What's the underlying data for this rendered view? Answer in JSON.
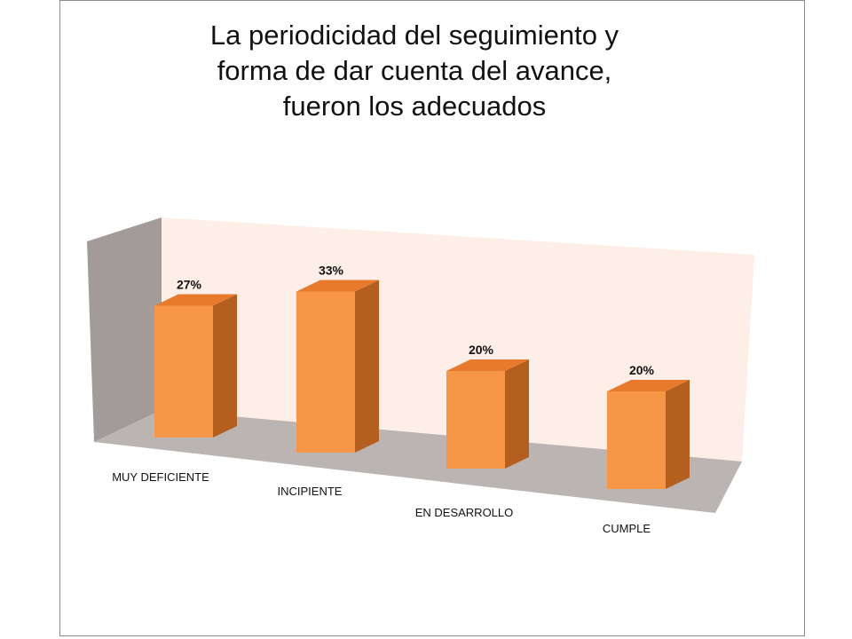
{
  "chart_data": {
    "type": "bar",
    "title_lines": [
      "La periodicidad del seguimiento y",
      "forma de dar cuenta del avance,",
      "fueron los adecuados"
    ],
    "categories": [
      "MUY DEFICIENTE",
      "INCIPIENTE",
      "EN DESARROLLO",
      "CUMPLE"
    ],
    "values": [
      27,
      33,
      20,
      20
    ],
    "data_labels": [
      "27%",
      "33%",
      "20%",
      "20%"
    ],
    "unit": "%",
    "ylim": [
      0,
      40
    ],
    "grid": false,
    "legend": "none",
    "three_d": true
  },
  "colors": {
    "bar_front": "#f79646",
    "bar_top": "#e77a2c",
    "bar_side": "#b45f1e",
    "back_wall": "#fdeee7",
    "side_wall": "#a29b99",
    "floor": "#bab5b2"
  }
}
